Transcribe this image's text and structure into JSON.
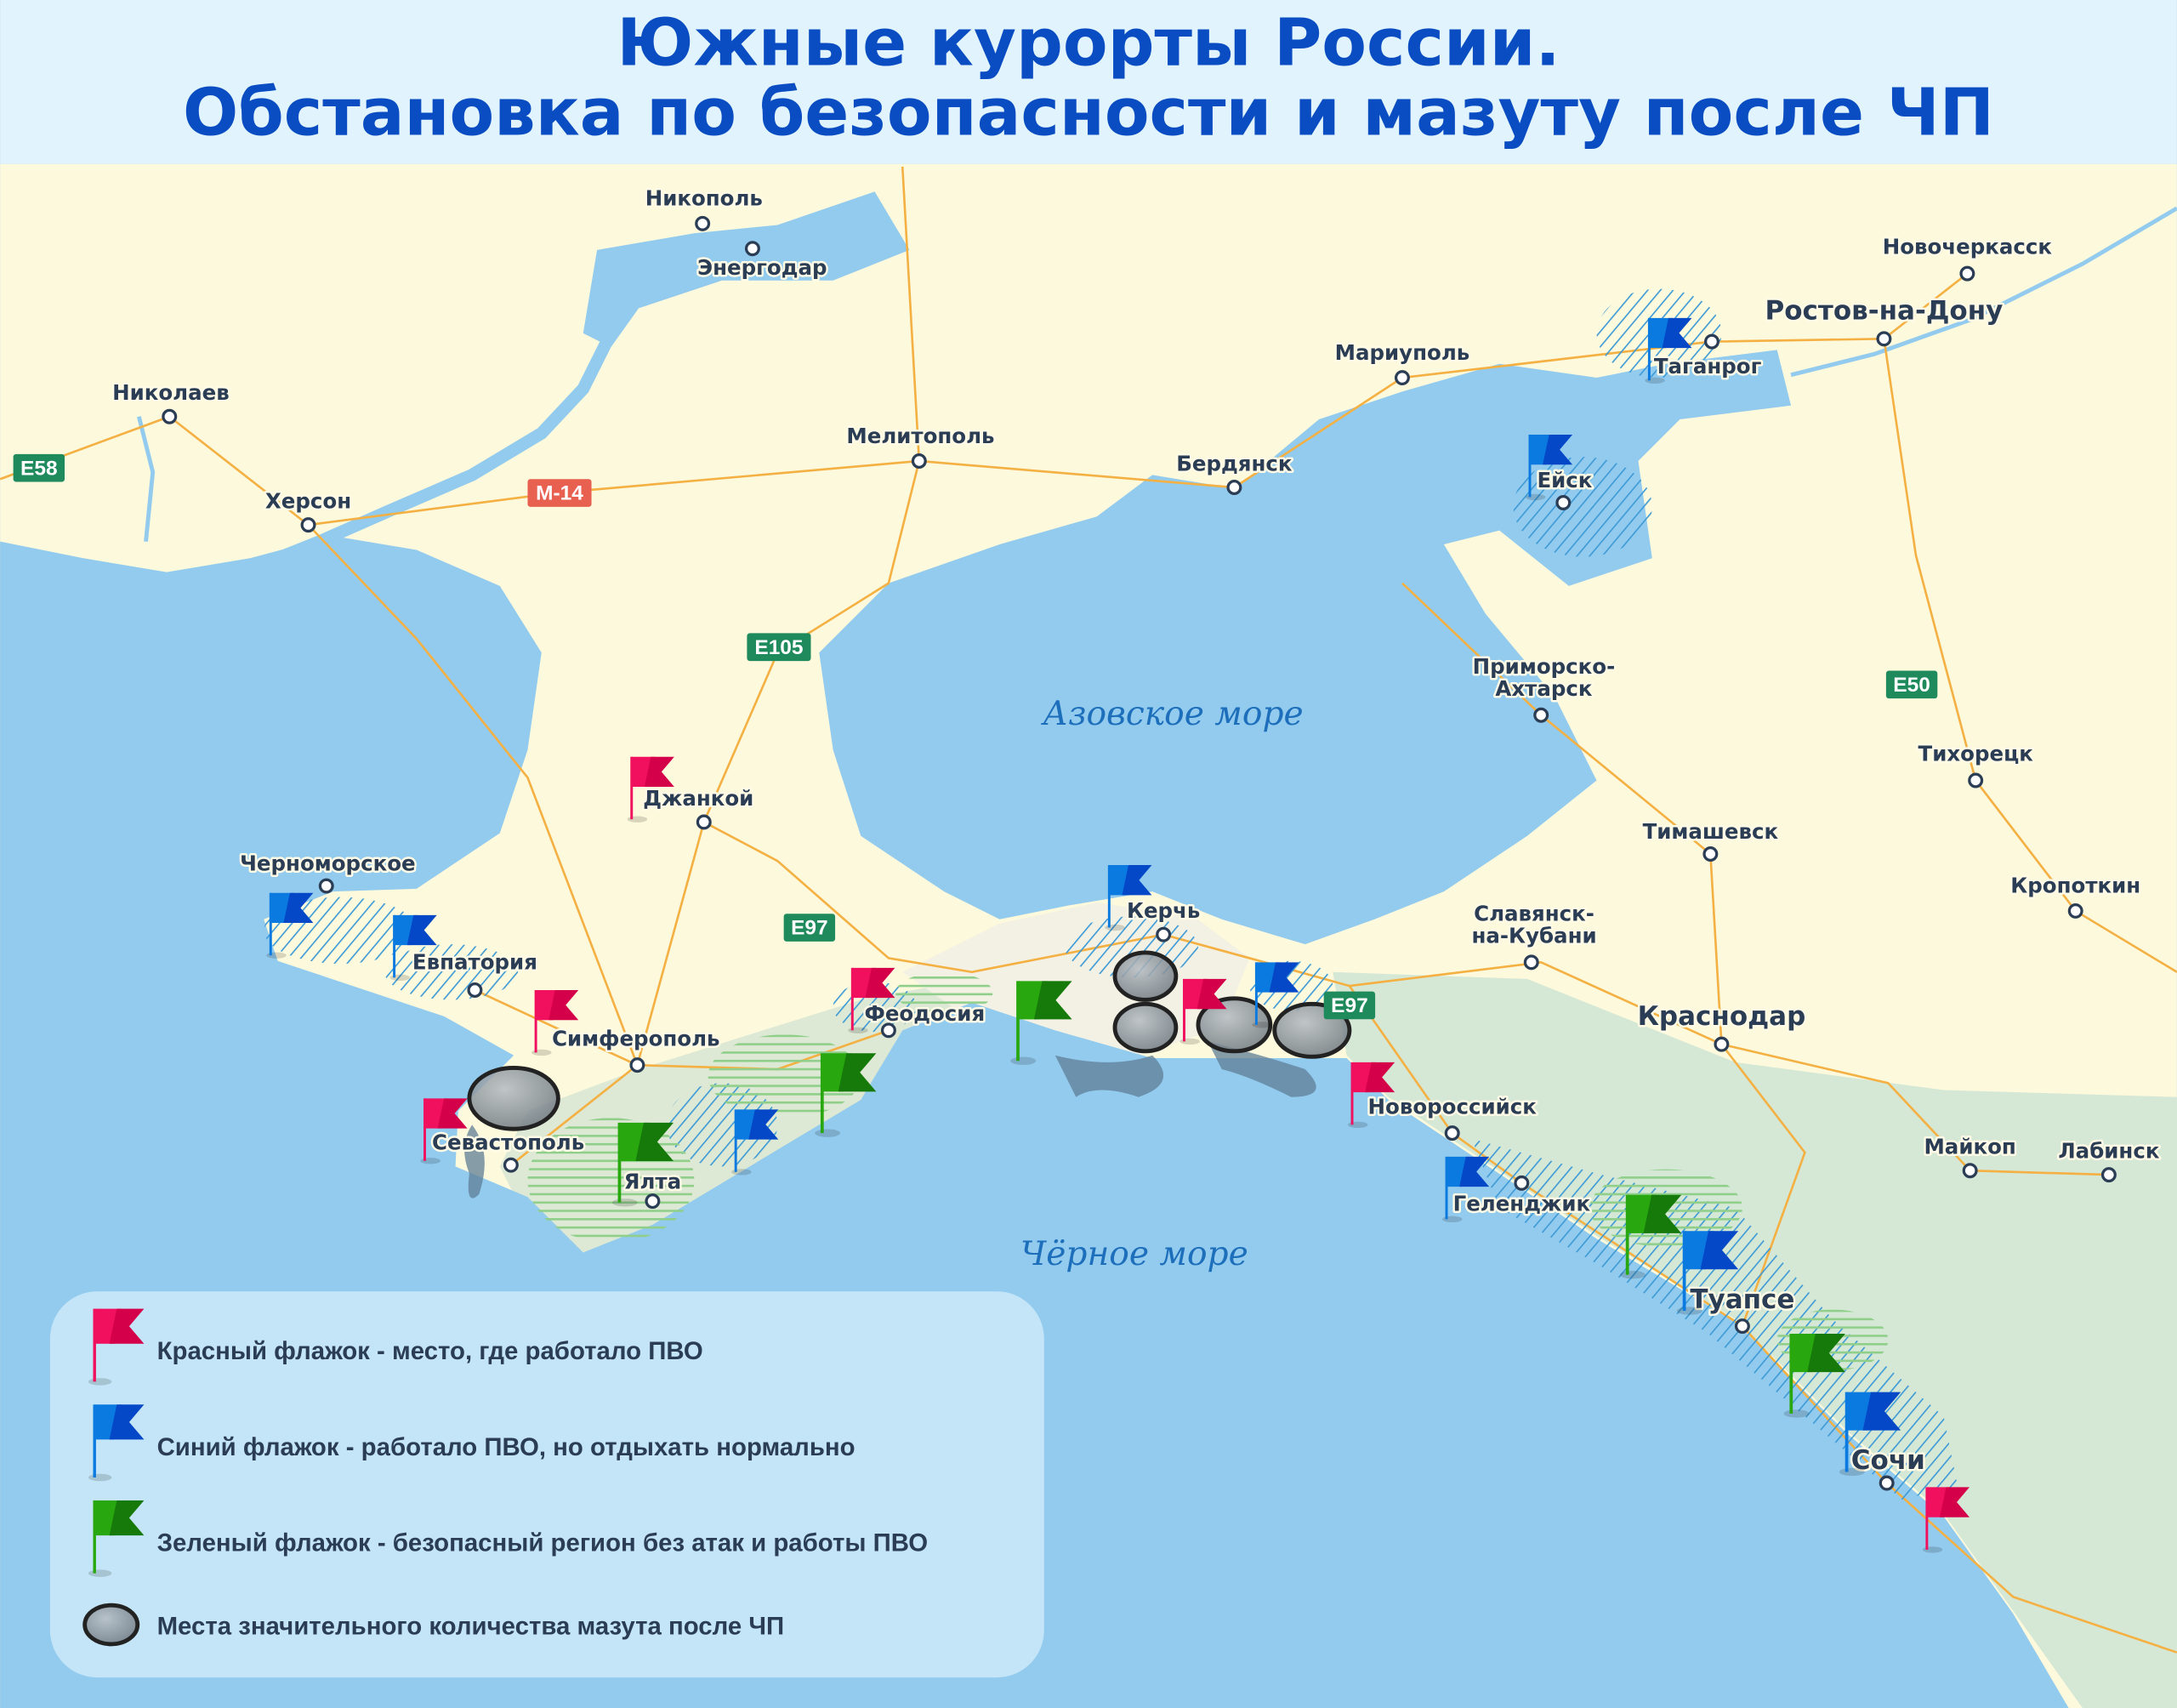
{
  "title": {
    "line1": "Южные курорты России.",
    "line2": "Обстановка по безопасности и мазуту после ЧП"
  },
  "colors": {
    "title": "#0a4cc2",
    "land": "#fdf9dc",
    "sea": "#93cbee",
    "green_zone": "#d5e8d6",
    "flag_red": "#f0105e",
    "flag_blue": "#0a6fd8",
    "flag_green": "#22a010",
    "road": "#f4b042",
    "legend_bg": "#c4e5f7"
  },
  "seas": {
    "azov": "Азовское море",
    "black": "Чёрное море"
  },
  "cities": [
    {
      "name": "Никополь"
    },
    {
      "name": "Энергодар"
    },
    {
      "name": "Николаев"
    },
    {
      "name": "Херсон"
    },
    {
      "name": "Мелитополь"
    },
    {
      "name": "Бердянск"
    },
    {
      "name": "Мариуполь"
    },
    {
      "name": "Таганрог"
    },
    {
      "name": "Новочеркасск"
    },
    {
      "name": "Ростов-на-Дону"
    },
    {
      "name": "Ейск"
    },
    {
      "name": "Приморско-",
      "name2": "Ахтарск"
    },
    {
      "name": "Тихорецк"
    },
    {
      "name": "Тимашевск"
    },
    {
      "name": "Кропоткин"
    },
    {
      "name": "Славянск-",
      "name2": "на-Кубани"
    },
    {
      "name": "Краснодар"
    },
    {
      "name": "Майкоп"
    },
    {
      "name": "Лабинск"
    },
    {
      "name": "Джанкой"
    },
    {
      "name": "Черноморское"
    },
    {
      "name": "Евпатория"
    },
    {
      "name": "Симферополь"
    },
    {
      "name": "Севастополь"
    },
    {
      "name": "Ялта"
    },
    {
      "name": "Феодосия"
    },
    {
      "name": "Керчь"
    },
    {
      "name": "Новороссийск"
    },
    {
      "name": "Геленджик"
    },
    {
      "name": "Туапсе"
    },
    {
      "name": "Сочи"
    }
  ],
  "road_badges": [
    {
      "label": "E58",
      "type": "euro"
    },
    {
      "label": "M-14",
      "type": "federal"
    },
    {
      "label": "E105",
      "type": "euro"
    },
    {
      "label": "E97",
      "type": "euro"
    },
    {
      "label": "E97",
      "type": "euro"
    },
    {
      "label": "E50",
      "type": "euro"
    }
  ],
  "flags": [
    {
      "color": "red",
      "place": "Джанкой"
    },
    {
      "color": "red",
      "place": "Симферополь"
    },
    {
      "color": "red",
      "place": "Севастополь"
    },
    {
      "color": "red",
      "place": "Феодосия"
    },
    {
      "color": "red",
      "place": "Керченский пролив"
    },
    {
      "color": "red",
      "place": "Новороссийск"
    },
    {
      "color": "red",
      "place": "южнее Сочи"
    },
    {
      "color": "blue",
      "place": "Черноморское"
    },
    {
      "color": "blue",
      "place": "Евпатория"
    },
    {
      "color": "blue",
      "place": "Керчь"
    },
    {
      "color": "blue",
      "place": "Тамань"
    },
    {
      "color": "blue",
      "place": "Таганрог"
    },
    {
      "color": "blue",
      "place": "Ейск"
    },
    {
      "color": "blue",
      "place": "Алушта"
    },
    {
      "color": "blue",
      "place": "Геленджик"
    },
    {
      "color": "blue",
      "place": "Туапсе"
    },
    {
      "color": "blue",
      "place": "Сочи"
    },
    {
      "color": "green",
      "place": "Керченский полуостров"
    },
    {
      "color": "green",
      "place": "Судак"
    },
    {
      "color": "green",
      "place": "Ялта"
    },
    {
      "color": "green",
      "place": "Джубга"
    },
    {
      "color": "green",
      "place": "Лазаревское"
    }
  ],
  "legend": {
    "items": [
      {
        "icon": "red-flag-icon",
        "label": "Красный флажок - место, где работало ПВО"
      },
      {
        "icon": "blue-flag-icon",
        "label": "Синий флажок - работало ПВО, но отдыхать нормально"
      },
      {
        "icon": "green-flag-icon",
        "label": "Зеленый флажок - безопасный регион без атак и работы ПВО"
      },
      {
        "icon": "oil-spill-icon",
        "label": "Места значительного количества мазута после ЧП"
      }
    ]
  }
}
